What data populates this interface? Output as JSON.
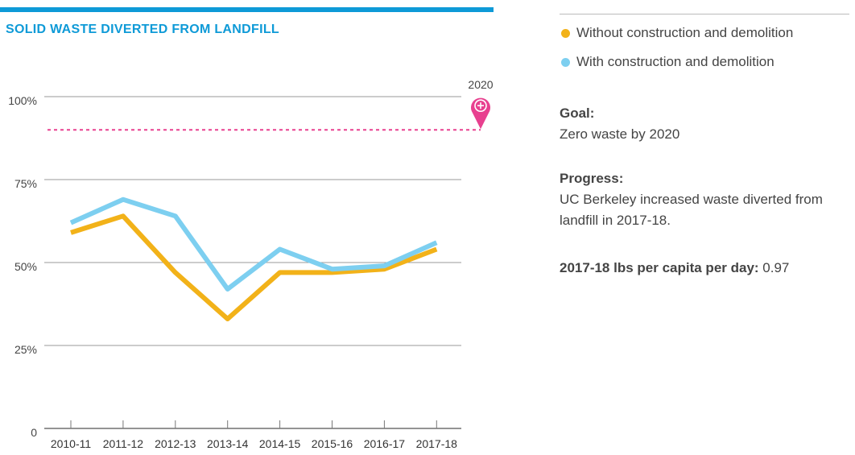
{
  "chart_data": {
    "type": "line",
    "title": "SOLID WASTE DIVERTED FROM LANDFILL",
    "categories": [
      "2010-11",
      "2011-12",
      "2012-13",
      "2013-14",
      "2014-15",
      "2015-16",
      "2016-17",
      "2017-18"
    ],
    "y_ticks": [
      {
        "value": 0,
        "label": "0"
      },
      {
        "value": 25,
        "label": "25%"
      },
      {
        "value": 50,
        "label": "50%"
      },
      {
        "value": 75,
        "label": "75%"
      },
      {
        "value": 100,
        "label": "100%"
      }
    ],
    "ylim": [
      0,
      100
    ],
    "series": [
      {
        "name": "Without construction and demolition",
        "color": "#f2b219",
        "values": [
          59,
          64,
          47,
          33,
          47,
          47,
          48,
          54
        ]
      },
      {
        "name": "With construction and demolition",
        "color": "#7dcff0",
        "values": [
          62,
          69,
          64,
          42,
          54,
          48,
          49,
          56
        ]
      }
    ],
    "goal": {
      "value": 90,
      "marker_label": "2020",
      "color": "#e8408f"
    },
    "grid": "horizontal",
    "legend_position": "right"
  },
  "colors": {
    "accent": "#0e9ad7",
    "grid": "#999999"
  },
  "side": {
    "goal_head": "Goal:",
    "goal_text": "Zero waste by 2020",
    "progress_head": "Progress:",
    "progress_text": "UC Berkeley increased waste diverted from landfill in 2017-18.",
    "capita_head": "2017-18 lbs per capita per day:",
    "capita_value": " 0.97"
  }
}
